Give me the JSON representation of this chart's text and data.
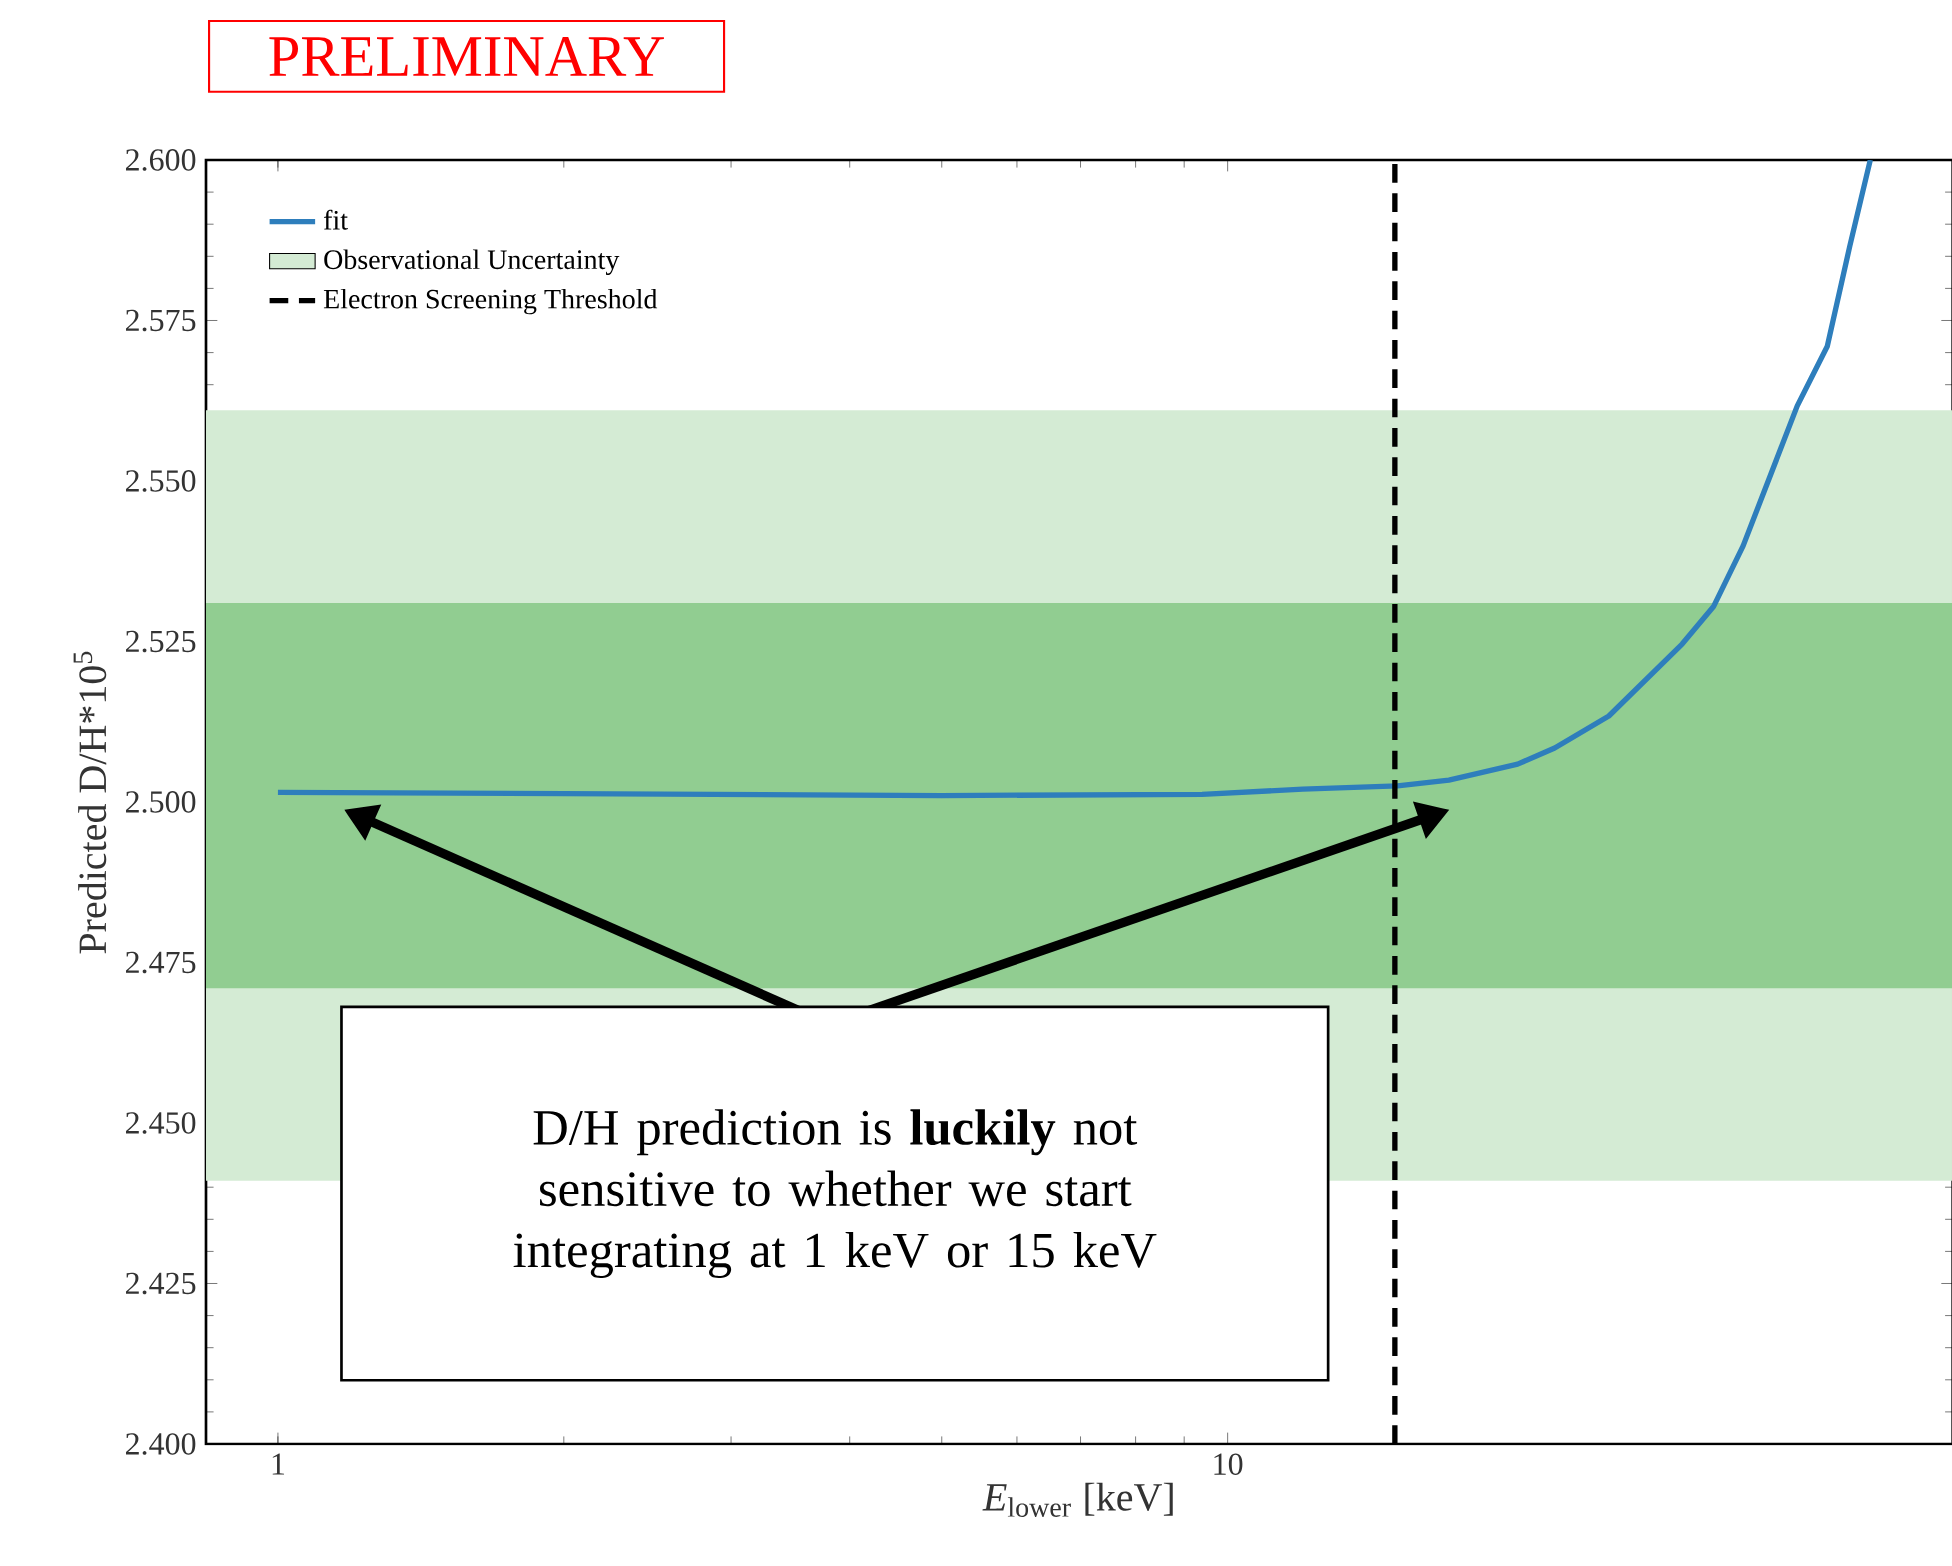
{
  "chart_data": {
    "type": "line",
    "title": "PRELIMINARY",
    "xlabel": "*E*$_{lower}$ [keV]",
    "ylabel": "Predicted D/H*10$^{5}$",
    "x": [
      1,
      2,
      5,
      9.4,
      12,
      15.1,
      17.1,
      20.2,
      22.1,
      25.2,
      30.1,
      32.5,
      34.9,
      39.8,
      42.8,
      45.2,
      47.5
    ],
    "series": [
      {
        "name": "fit",
        "color": "#2e7ebc",
        "values": [
          2.5015,
          2.5013,
          2.501,
          2.5012,
          2.502,
          2.5025,
          2.5034,
          2.5059,
          2.5084,
          2.5134,
          2.5246,
          2.5305,
          2.5399,
          2.5617,
          2.571,
          2.5866,
          2.6
        ]
      }
    ],
    "log": "x",
    "xlim": [
      0.84,
      58
    ],
    "xticks": [
      1,
      10
    ],
    "ylim": [
      2.4,
      2.6
    ],
    "yticks": [
      {
        "value": 2.4,
        "label": "2.400"
      },
      {
        "value": 2.425,
        "label": "2.425"
      },
      {
        "value": 2.45,
        "label": "2.450"
      },
      {
        "value": 2.475,
        "label": "2.475"
      },
      {
        "value": 2.5,
        "label": "2.500"
      },
      {
        "value": 2.525,
        "label": "2.525"
      },
      {
        "value": 2.55,
        "label": "2.550"
      },
      {
        "value": 2.575,
        "label": "2.575"
      },
      {
        "value": 2.6,
        "label": "2.600"
      }
    ],
    "bands": [
      {
        "axis": "y",
        "from": 2.441,
        "to": 2.561,
        "label": "Observational Uncertainty",
        "color": "#d4ebd4"
      },
      {
        "axis": "y",
        "from": 2.471,
        "to": 2.531,
        "color": "#91cd91"
      }
    ],
    "ref_lines": [
      {
        "axis": "x",
        "value": 15,
        "label": "Electron Screening Threshold",
        "color": "#000000",
        "line_style": "dashed"
      }
    ],
    "annotations": [
      "D/H prediction is **luckily** not sensitive to whether we start integrating at 1 keV or 15 keV"
    ],
    "legend": "top left",
    "grid": false,
    "marker": "none",
    "line_style": "solid"
  }
}
